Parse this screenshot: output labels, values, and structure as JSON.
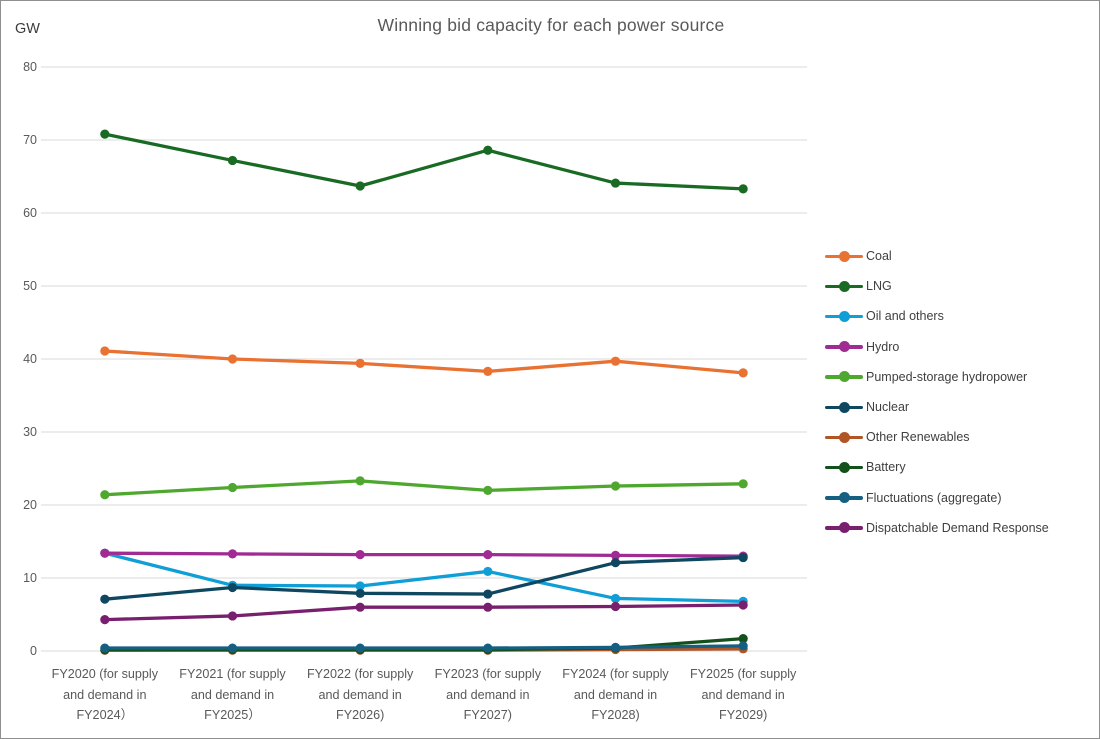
{
  "window": {
    "background": "#ffffff",
    "border_color": "#8f8f8f"
  },
  "header": {
    "title": "Winning bid capacity for each power source",
    "unit_label": "GW"
  },
  "colors": {
    "gridline": "#d9d9d9",
    "axis_text": "#595959",
    "legend_text": "#404040",
    "title_text": "#595959"
  },
  "chart_data": {
    "type": "line",
    "title": "Winning bid capacity for each power source",
    "ylabel": "GW",
    "xlabel": "",
    "ylim": [
      0,
      80
    ],
    "yticks": [
      "0",
      "10",
      "20",
      "30",
      "40",
      "50",
      "60",
      "70",
      "80"
    ],
    "grid": "horizontal",
    "legend_position": "right",
    "marker": "circle",
    "categories": [
      "FY2020 (for supply and demand in FY2024）",
      "FY2021 (for supply and demand in FY2025）",
      "FY2022 (for supply and demand in FY2026)",
      "FY2023 (for supply and demand in FY2027)",
      "FY2024 (for supply and demand in FY2028)",
      "FY2025 (for supply and demand in FY2029)"
    ],
    "category_lines": [
      [
        "FY2020 (for supply",
        "and demand in",
        "FY2024）"
      ],
      [
        "FY2021 (for supply",
        "and demand in",
        "FY2025）"
      ],
      [
        "FY2022 (for supply",
        "and demand in",
        "FY2026)"
      ],
      [
        "FY2023 (for supply",
        "and demand in",
        "FY2027)"
      ],
      [
        "FY2024 (for supply",
        "and demand in",
        "FY2028)"
      ],
      [
        "FY2025 (for supply",
        "and demand in",
        "FY2029)"
      ]
    ],
    "series": [
      {
        "name": "Coal",
        "color": "#E97132",
        "values": [
          41.1,
          40.0,
          39.4,
          38.3,
          39.7,
          38.1
        ]
      },
      {
        "name": "LNG",
        "color": "#196B24",
        "values": [
          70.8,
          67.2,
          63.7,
          68.6,
          64.1,
          63.3
        ]
      },
      {
        "name": "Oil and others",
        "color": "#0F9ED5",
        "values": [
          13.4,
          9.0,
          8.9,
          10.9,
          7.2,
          6.8
        ]
      },
      {
        "name": "Hydro",
        "color": "#A02B93",
        "values": [
          13.4,
          13.3,
          13.2,
          13.2,
          13.1,
          13.0
        ]
      },
      {
        "name": "Pumped-storage hydropower",
        "color": "#4EA72E",
        "values": [
          21.4,
          22.4,
          23.3,
          22.0,
          22.6,
          22.9
        ]
      },
      {
        "name": "Nuclear",
        "color": "#0F4761",
        "values": [
          7.1,
          8.7,
          7.9,
          7.8,
          12.1,
          12.8
        ]
      },
      {
        "name": "Other Renewables",
        "color": "#AF5526",
        "values": [
          0.1,
          0.1,
          0.1,
          0.1,
          0.2,
          0.3
        ]
      },
      {
        "name": "Battery",
        "color": "#13501B",
        "values": [
          0.15,
          0.2,
          0.2,
          0.2,
          0.4,
          1.7
        ]
      },
      {
        "name": "Fluctuations (aggregate)",
        "color": "#156082",
        "values": [
          0.4,
          0.4,
          0.4,
          0.4,
          0.5,
          0.7
        ]
      },
      {
        "name": "Dispatchable Demand Response",
        "color": "#78206E",
        "values": [
          4.3,
          4.8,
          6.0,
          6.0,
          6.1,
          6.3
        ]
      }
    ]
  }
}
